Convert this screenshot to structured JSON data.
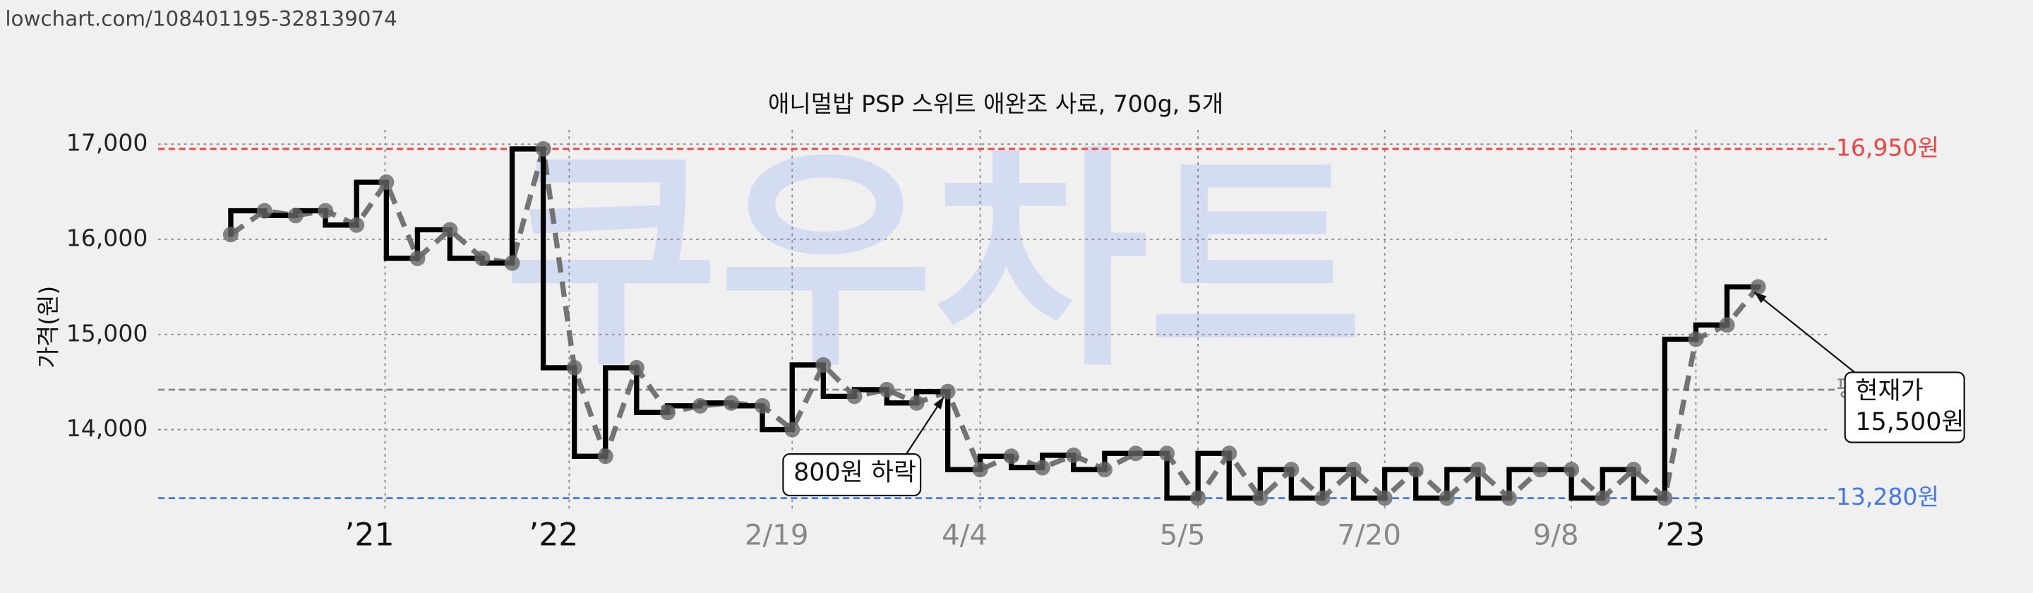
{
  "header": {
    "url": "lowchart.com/108401195-328139074"
  },
  "chart_data": {
    "type": "step-line",
    "title": "애니멀밥 PSP 스위트 애완조 사료, 700g, 5개",
    "y_label": "가격(원)",
    "watermark": "쿠우차트",
    "x": [
      17.8,
      20.4,
      22.8,
      25.1,
      27.5,
      29.8,
      32.2,
      34.7,
      37.2,
      39.5,
      41.9,
      44.3,
      46.7,
      49.1,
      51.5,
      54.0,
      56.4,
      58.8,
      61.1,
      63.5,
      65.9,
      68.4,
      70.7,
      73.1,
      75.6,
      78.0,
      80.4,
      82.8,
      85.2,
      87.6,
      90.0,
      92.4,
      94.8,
      97.2,
      99.6,
      102.0,
      104.4,
      106.8,
      109.2,
      111.6,
      114.0,
      116.4,
      118.8,
      121.2,
      123.6,
      126.0,
      128.4,
      130.8,
      133.2,
      135.6
    ],
    "series": [
      {
        "name": "가격",
        "color": "#000000",
        "marker_color": "#666666",
        "values": [
          16050,
          16300,
          16250,
          16300,
          16150,
          16600,
          15800,
          16100,
          15800,
          15750,
          16950,
          14650,
          13720,
          14650,
          14180,
          14250,
          14280,
          14250,
          14000,
          14680,
          14350,
          14420,
          14280,
          14400,
          13580,
          13720,
          13600,
          13730,
          13580,
          13750,
          13750,
          13280,
          13750,
          13280,
          13580,
          13280,
          13580,
          13280,
          13580,
          13280,
          13580,
          13280,
          13580,
          13580,
          13280,
          13580,
          13280,
          14950,
          15100,
          15500
        ]
      }
    ],
    "xlim": [
      12.2,
      141.0
    ],
    "xticks": [
      {
        "value": 29.7,
        "label": "’21"
      },
      {
        "value": 43.9,
        "label": "’22"
      },
      {
        "value": 61.1,
        "label": "2/19"
      },
      {
        "value": 75.6,
        "label": "4/4"
      },
      {
        "value": 92.4,
        "label": "5/5"
      },
      {
        "value": 106.8,
        "label": "7/20"
      },
      {
        "value": 121.2,
        "label": "9/8"
      },
      {
        "value": 130.8,
        "label": "’23"
      }
    ],
    "ylim": [
      13130,
      17150
    ],
    "yticks": [
      {
        "value": 14000,
        "label": "14,000"
      },
      {
        "value": 15000,
        "label": "15,000"
      },
      {
        "value": 16000,
        "label": "16,000"
      },
      {
        "value": 17000,
        "label": "17,000"
      }
    ],
    "grid": true,
    "reference_lines": [
      {
        "value": 16950,
        "label": "16,950원",
        "color": "#ee4444"
      },
      {
        "value": 14420,
        "label": "평균",
        "color": "#888888"
      },
      {
        "value": 13280,
        "label": "13,280원",
        "color": "#4477ee"
      }
    ],
    "annotations": [
      {
        "lines": [
          "800원 하락"
        ],
        "point": 23
      },
      {
        "lines": [
          "현재가",
          "15,500원"
        ],
        "point": 49
      }
    ]
  }
}
